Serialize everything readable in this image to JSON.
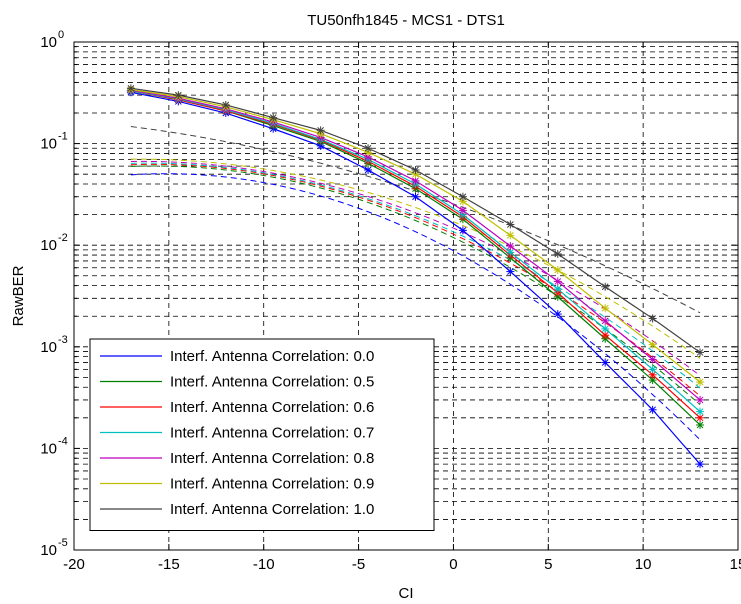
{
  "chart_data": {
    "type": "line",
    "title": "TU50nfh1845 - MCS1 - DTS1",
    "xlabel": "CI",
    "ylabel": "RawBER",
    "xlim": [
      -20,
      15
    ],
    "ylim": [
      1e-05,
      1
    ],
    "yscale": "log",
    "grid": "dashed, major and minor",
    "legend_position": "bottom-left",
    "x_ticks": [
      -20,
      -15,
      -10,
      -5,
      0,
      5,
      10,
      15
    ],
    "x_tick_labels": [
      "-20",
      "-15",
      "-10",
      "-5",
      "0",
      "5",
      "10",
      "15"
    ],
    "y_ticks": [
      1e-05,
      0.0001,
      0.001,
      0.01,
      0.1,
      1
    ],
    "y_tick_labels": [
      {
        "base": "10",
        "exp": "-5"
      },
      {
        "base": "10",
        "exp": "-4"
      },
      {
        "base": "10",
        "exp": "-3"
      },
      {
        "base": "10",
        "exp": "-2"
      },
      {
        "base": "10",
        "exp": "-1"
      },
      {
        "base": "10",
        "exp": "0"
      }
    ],
    "x": [
      -17,
      -14.5,
      -12,
      -9.5,
      -7,
      -4.5,
      -2,
      0.5,
      3,
      5.5,
      8,
      10.5,
      13
    ],
    "marker": "asterisk",
    "series": [
      {
        "name": "Interf. Antenna Correlation: 0.0",
        "color": "#0000ff",
        "values": [
          0.32,
          0.26,
          0.2,
          0.14,
          0.095,
          0.055,
          0.03,
          0.014,
          0.0055,
          0.0021,
          0.0007,
          0.00024,
          7e-05
        ]
      },
      {
        "name": "Interf. Antenna Correlation: 0.5",
        "color": "#008000",
        "values": [
          0.33,
          0.27,
          0.21,
          0.15,
          0.105,
          0.064,
          0.036,
          0.018,
          0.0075,
          0.0031,
          0.0012,
          0.00047,
          0.00017
        ]
      },
      {
        "name": "Interf. Antenna Correlation: 0.6",
        "color": "#ff0000",
        "values": [
          0.33,
          0.27,
          0.21,
          0.155,
          0.108,
          0.067,
          0.038,
          0.019,
          0.008,
          0.0034,
          0.0013,
          0.00053,
          0.0002
        ]
      },
      {
        "name": "Interf. Antenna Correlation: 0.7",
        "color": "#00bfbf",
        "values": [
          0.33,
          0.275,
          0.215,
          0.158,
          0.11,
          0.07,
          0.04,
          0.02,
          0.0085,
          0.0037,
          0.0015,
          0.0006,
          0.00023
        ]
      },
      {
        "name": "Interf. Antenna Correlation: 0.8",
        "color": "#bf00bf",
        "values": [
          0.335,
          0.28,
          0.22,
          0.163,
          0.115,
          0.074,
          0.043,
          0.022,
          0.0098,
          0.0044,
          0.0018,
          0.00075,
          0.0003
        ]
      },
      {
        "name": "Interf. Antenna Correlation: 0.9",
        "color": "#bfbf00",
        "values": [
          0.34,
          0.29,
          0.23,
          0.172,
          0.125,
          0.082,
          0.05,
          0.027,
          0.0125,
          0.0057,
          0.0024,
          0.00105,
          0.00045
        ]
      },
      {
        "name": "Interf. Antenna Correlation: 1.0",
        "color": "#404040",
        "values": [
          0.35,
          0.3,
          0.24,
          0.18,
          0.135,
          0.09,
          0.055,
          0.03,
          0.016,
          0.0082,
          0.0039,
          0.0019,
          0.00088
        ]
      }
    ],
    "trend_lines": [
      {
        "series": "Interf. Antenna Correlation: 0.0",
        "color": "#0000ff",
        "x": [
          -17,
          13
        ],
        "coefficients": [
          -2.0545,
          -0.10014,
          -0.0033054
        ]
      },
      {
        "series": "Interf. Antenna Correlation: 0.5",
        "color": "#008000",
        "x": [
          -17,
          13
        ],
        "coefficients": [
          -1.9244,
          -0.089514,
          -0.0028446
        ]
      },
      {
        "series": "Interf. Antenna Correlation: 0.6",
        "color": "#ff0000",
        "x": [
          -17,
          13
        ],
        "coefficients": [
          -1.8915,
          -0.086831,
          -0.0027437
        ]
      },
      {
        "series": "Interf. Antenna Correlation: 0.7",
        "color": "#00bfbf",
        "x": [
          -17,
          13
        ],
        "coefficients": [
          -1.8679,
          -0.084208,
          -0.0026236
        ]
      },
      {
        "series": "Interf. Antenna Correlation: 0.8",
        "color": "#bf00bf",
        "x": [
          -17,
          13
        ],
        "coefficients": [
          -1.8313,
          -0.080045,
          -0.0024409
        ]
      },
      {
        "series": "Interf. Antenna Correlation: 0.9",
        "color": "#bfbf00",
        "x": [
          -17,
          13
        ],
        "coefficients": [
          -1.7689,
          -0.074297,
          -0.0022393
        ]
      },
      {
        "series": "Interf. Antenna Correlation: 1.0",
        "color": "#404040",
        "x": [
          -17,
          13
        ],
        "coefficients": [
          -1.5943,
          -0.066104,
          -0.0012512
        ]
      }
    ]
  }
}
